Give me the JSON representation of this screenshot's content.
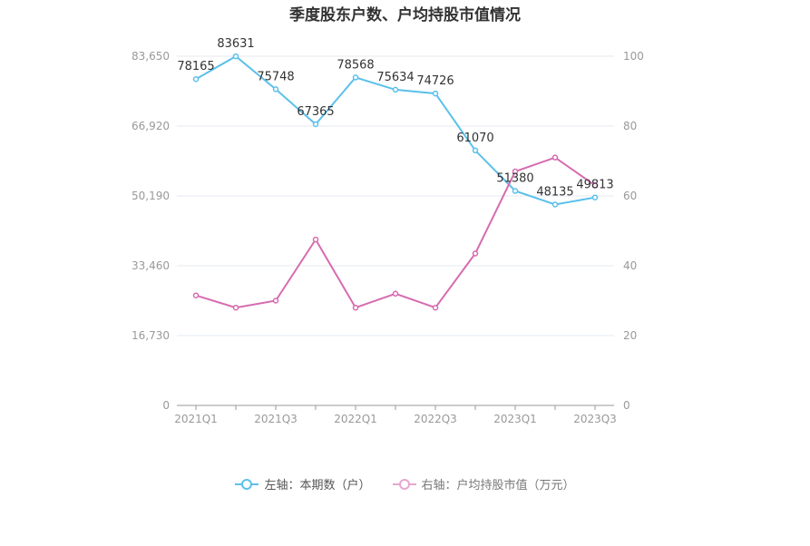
{
  "chart_data": {
    "type": "line",
    "title": "季度股东户数、户均持股市值情况",
    "categories": [
      "2021Q1",
      "2021Q2",
      "2021Q3",
      "2021Q4",
      "2022Q1",
      "2022Q2",
      "2022Q3",
      "2022Q4",
      "2023Q1",
      "2023Q2",
      "2023Q3"
    ],
    "x_tick_labels": [
      "2021Q1",
      "2021Q3",
      "2022Q1",
      "2022Q3",
      "2023Q1",
      "2023Q3"
    ],
    "left_axis": {
      "ylim": [
        0,
        83650
      ],
      "ticks": [
        "0",
        "16,730",
        "33,460",
        "50,190",
        "66,920",
        "83,650"
      ]
    },
    "right_axis": {
      "ylim": [
        0,
        100
      ],
      "ticks": [
        "0",
        "20",
        "40",
        "60",
        "80",
        "100"
      ]
    },
    "grid": true,
    "legend_position": "bottom",
    "series": [
      {
        "name": "左轴：本期数（户）",
        "axis": "left",
        "color": "#5bc0eb",
        "values": [
          78165,
          83631,
          75748,
          67365,
          78568,
          75634,
          74726,
          61070,
          51380,
          48135,
          49813
        ],
        "labels": [
          "78165",
          "83631",
          "75748",
          "67365",
          "78568",
          "75634",
          "74726",
          "61070",
          "51380",
          "48135",
          "49813"
        ]
      },
      {
        "name": "右轴：户均持股市值（万元）",
        "axis": "right",
        "color": "#d66bb0",
        "values": [
          31.5,
          28,
          30,
          47.5,
          28,
          32,
          28,
          43.5,
          67,
          71,
          63
        ]
      }
    ]
  }
}
